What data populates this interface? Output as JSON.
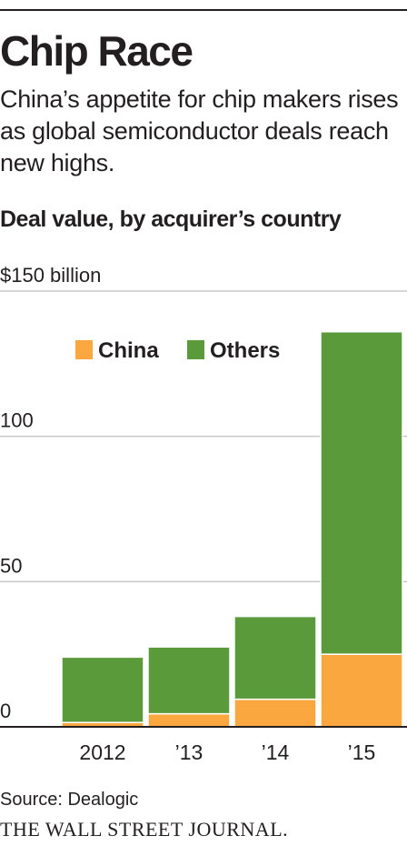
{
  "header": {
    "title": "Chip Race",
    "subtitle": "China’s appetite for chip makers rises as global semiconductor deals reach new highs."
  },
  "chart_data": {
    "type": "bar",
    "stacked": true,
    "title": "Deal value, by acquirer’s country",
    "ylabel": "",
    "xlabel": "",
    "unit_label": "$150 billion",
    "ylim": [
      0,
      150
    ],
    "yticks": [
      0,
      50,
      100,
      150
    ],
    "ytick_labels": [
      "0",
      "50",
      "100",
      "$150 billion"
    ],
    "categories": [
      "2012",
      "’13",
      "’14",
      "’15"
    ],
    "series": [
      {
        "name": "China",
        "color": "#f9a73e",
        "values": [
          1.5,
          4.5,
          9.5,
          25
        ]
      },
      {
        "name": "Others",
        "color": "#5a9a3b",
        "values": [
          22.5,
          23,
          28.5,
          111
        ]
      }
    ],
    "grid": true,
    "legend": "top-left"
  },
  "footer": {
    "source": "Source: Dealogic",
    "publisher": "THE WALL STREET JOURNAL."
  }
}
